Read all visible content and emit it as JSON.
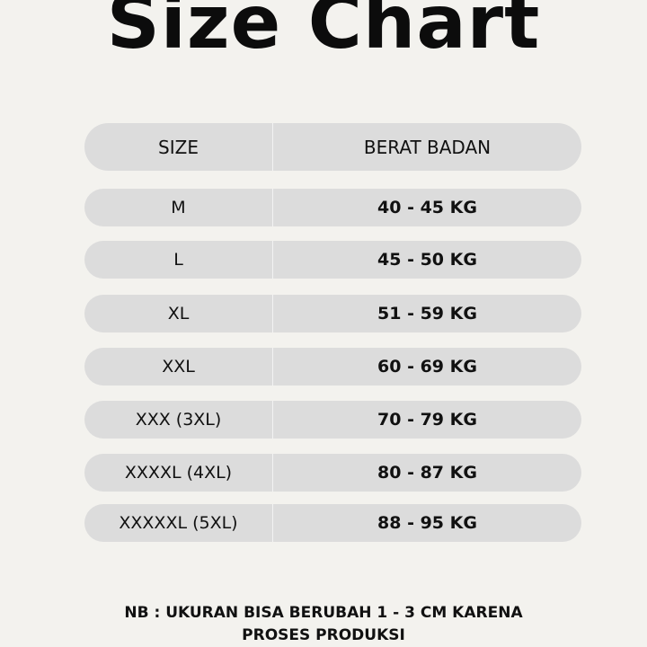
{
  "title": "Size Chart",
  "table": {
    "headers": [
      "SIZE",
      "BERAT BADAN"
    ],
    "rows": [
      [
        "M",
        "40 - 45 KG"
      ],
      [
        "L",
        "45 - 50 KG"
      ],
      [
        "XL",
        "51 - 59 KG"
      ],
      [
        "XXL",
        "60 - 69 KG"
      ],
      [
        "XXX (3XL)",
        "70 - 79 KG"
      ],
      [
        "XXXXL (4XL)",
        "80 - 87 KG"
      ],
      [
        "XXXXXL (5XL)",
        "88 - 95 KG"
      ]
    ]
  },
  "note": {
    "line1": "NB : UKURAN BISA BERUBAH 1 - 3 CM KARENA",
    "line2": "PROSES PRODUKSI"
  },
  "colors": {
    "background": "#f3f2ee",
    "row": "#dcdcdc",
    "text": "#111111"
  }
}
